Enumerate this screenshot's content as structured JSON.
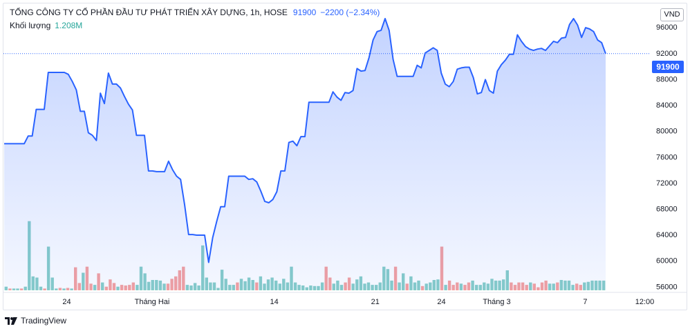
{
  "legend": {
    "title": "TỔNG CÔNG TY CỔ PHẦN ĐẦU TƯ PHÁT TRIỂN XÂY DỰNG, 1h, HOSE",
    "price": "91900",
    "change": "−2200 (−2.34%)",
    "volume_label": "Khối lượng",
    "volume_value": "1.208M"
  },
  "currency": "VND",
  "last_price_label": "91900",
  "brand": "TradingView",
  "colors": {
    "line": "#2962ff",
    "area_fill": "#2962ff",
    "volume_up": "#26a69a",
    "volume_down": "#ef5350"
  },
  "chart_data": {
    "type": "area",
    "y_ticks": [
      "96000",
      "92000",
      "88000",
      "84000",
      "80000",
      "76000",
      "72000",
      "68000",
      "64000",
      "60000",
      "56000"
    ],
    "x_ticks": [
      "24",
      "Tháng Hai",
      "14",
      "21",
      "24",
      "Tháng 3",
      "7",
      "12:00"
    ],
    "ylim": [
      55500,
      99000
    ],
    "last_value": 91900,
    "series": [
      {
        "values": [
          78000,
          78000,
          78000,
          78000,
          78000,
          78000,
          79200,
          79200,
          83300,
          83300,
          83300,
          89000,
          89000,
          89000,
          89000,
          89000,
          88700,
          87600,
          86300,
          83000,
          83000,
          79700,
          79300,
          78500,
          85800,
          84200,
          88900,
          87200,
          87200,
          86600,
          85300,
          84100,
          83200,
          79300,
          79300,
          79300,
          73800,
          73800,
          73700,
          73700,
          73700,
          75300,
          74000,
          73000,
          72500,
          68600,
          64000,
          64000,
          63900,
          63900,
          63900,
          59700,
          63500,
          66000,
          68300,
          68300,
          73000,
          73000,
          73000,
          73000,
          73000,
          72500,
          72600,
          72100,
          70700,
          69100,
          68900,
          69400,
          70600,
          73800,
          73800,
          78200,
          78400,
          77700,
          79100,
          79100,
          84400,
          84400,
          84400,
          84400,
          84400,
          84400,
          86000,
          85200,
          84700,
          85900,
          85800,
          86200,
          89600,
          89200,
          89300,
          91300,
          94000,
          95300,
          95500,
          97300,
          95500,
          91000,
          88400,
          88400,
          88400,
          88400,
          88400,
          90100,
          89700,
          92000,
          92400,
          92800,
          92400,
          88900,
          87200,
          86800,
          87600,
          89500,
          89700,
          89800,
          89800,
          88200,
          85700,
          85900,
          87900,
          86200,
          85800,
          89200,
          90200,
          90900,
          91800,
          91800,
          94800,
          93800,
          93000,
          92600,
          92400,
          92600,
          92700,
          92400,
          93100,
          93800,
          93600,
          94300,
          94400,
          96400,
          97300,
          96300,
          94400,
          95900,
          95700,
          95300,
          94000,
          93600,
          91900
        ]
      }
    ],
    "volume": [
      {
        "v": 0.6,
        "up": true
      },
      {
        "v": 0.3,
        "up": false
      },
      {
        "v": 0.3,
        "up": true
      },
      {
        "v": 0.3,
        "up": true
      },
      {
        "v": 0.3,
        "up": false
      },
      {
        "v": 0.6,
        "up": true
      },
      {
        "v": 11.4,
        "up": true
      },
      {
        "v": 2.3,
        "up": true
      },
      {
        "v": 2.1,
        "up": true
      },
      {
        "v": 0.6,
        "up": true
      },
      {
        "v": 0.3,
        "up": false
      },
      {
        "v": 7.2,
        "up": true
      },
      {
        "v": 2.1,
        "up": true
      },
      {
        "v": 0.3,
        "up": true
      },
      {
        "v": 0.4,
        "up": false
      },
      {
        "v": 0.3,
        "up": true
      },
      {
        "v": 0.4,
        "up": false
      },
      {
        "v": 0.3,
        "up": true
      },
      {
        "v": 3.8,
        "up": false
      },
      {
        "v": 1.2,
        "up": false
      },
      {
        "v": 2.9,
        "up": true
      },
      {
        "v": 3.9,
        "up": false
      },
      {
        "v": 1.1,
        "up": false
      },
      {
        "v": 0.9,
        "up": true
      },
      {
        "v": 2.8,
        "up": false
      },
      {
        "v": 1.3,
        "up": true
      },
      {
        "v": 0.6,
        "up": false
      },
      {
        "v": 1.8,
        "up": false
      },
      {
        "v": 1.2,
        "up": false
      },
      {
        "v": 0.6,
        "up": true
      },
      {
        "v": 0.9,
        "up": false
      },
      {
        "v": 0.8,
        "up": false
      },
      {
        "v": 0.9,
        "up": false
      },
      {
        "v": 1.3,
        "up": false
      },
      {
        "v": 0.9,
        "up": true
      },
      {
        "v": 3.9,
        "up": true
      },
      {
        "v": 2.8,
        "up": true
      },
      {
        "v": 1.4,
        "up": true
      },
      {
        "v": 1.7,
        "up": true
      },
      {
        "v": 1.7,
        "up": true
      },
      {
        "v": 1.6,
        "up": true
      },
      {
        "v": 1.1,
        "up": true
      },
      {
        "v": 1.1,
        "up": false
      },
      {
        "v": 1.9,
        "up": false
      },
      {
        "v": 2.3,
        "up": false
      },
      {
        "v": 3.3,
        "up": false
      },
      {
        "v": 3.9,
        "up": false
      },
      {
        "v": 0.9,
        "up": true
      },
      {
        "v": 0.8,
        "up": true
      },
      {
        "v": 1.2,
        "up": true
      },
      {
        "v": 0.8,
        "up": true
      },
      {
        "v": 7.4,
        "up": true
      },
      {
        "v": 2.1,
        "up": true
      },
      {
        "v": 1.3,
        "up": true
      },
      {
        "v": 1.3,
        "up": true
      },
      {
        "v": 0.4,
        "up": true
      },
      {
        "v": 3.4,
        "up": true
      },
      {
        "v": 1.9,
        "up": true
      },
      {
        "v": 0.9,
        "up": true
      },
      {
        "v": 0.9,
        "up": true
      },
      {
        "v": 1.3,
        "up": false
      },
      {
        "v": 1.9,
        "up": true
      },
      {
        "v": 1.5,
        "up": true
      },
      {
        "v": 2.1,
        "up": true
      },
      {
        "v": 1.7,
        "up": true
      },
      {
        "v": 1.3,
        "up": false
      },
      {
        "v": 2.3,
        "up": true
      },
      {
        "v": 1.1,
        "up": true
      },
      {
        "v": 1.8,
        "up": true
      },
      {
        "v": 2.1,
        "up": true
      },
      {
        "v": 1.6,
        "up": true
      },
      {
        "v": 1.1,
        "up": true
      },
      {
        "v": 1.9,
        "up": true
      },
      {
        "v": 1.3,
        "up": true
      },
      {
        "v": 3.9,
        "up": true
      },
      {
        "v": 1.3,
        "up": true
      },
      {
        "v": 0.9,
        "up": true
      },
      {
        "v": 0.8,
        "up": true
      },
      {
        "v": 0.5,
        "up": true
      },
      {
        "v": 0.8,
        "up": true
      },
      {
        "v": 0.7,
        "up": true
      },
      {
        "v": 0.7,
        "up": true
      },
      {
        "v": 1.3,
        "up": true
      },
      {
        "v": 3.9,
        "up": false
      },
      {
        "v": 2.1,
        "up": false
      },
      {
        "v": 1.1,
        "up": true
      },
      {
        "v": 1.6,
        "up": true
      },
      {
        "v": 0.9,
        "up": true
      },
      {
        "v": 1.3,
        "up": false
      },
      {
        "v": 2.1,
        "up": false
      },
      {
        "v": 1.1,
        "up": true
      },
      {
        "v": 1.8,
        "up": true
      },
      {
        "v": 2.3,
        "up": true
      },
      {
        "v": 1.1,
        "up": true
      },
      {
        "v": 1.3,
        "up": true
      },
      {
        "v": 0.9,
        "up": true
      },
      {
        "v": 0.9,
        "up": true
      },
      {
        "v": 1.3,
        "up": true
      },
      {
        "v": 3.9,
        "up": true
      },
      {
        "v": 3.5,
        "up": true
      },
      {
        "v": 1.6,
        "up": true
      },
      {
        "v": 3.9,
        "up": false
      },
      {
        "v": 1.3,
        "up": true
      },
      {
        "v": 2.8,
        "up": true
      },
      {
        "v": 1.1,
        "up": false
      },
      {
        "v": 2.3,
        "up": true
      },
      {
        "v": 1.3,
        "up": true
      },
      {
        "v": 1.6,
        "up": true
      },
      {
        "v": 0.7,
        "up": false
      },
      {
        "v": 1.1,
        "up": true
      },
      {
        "v": 1.3,
        "up": true
      },
      {
        "v": 1.7,
        "up": true
      },
      {
        "v": 1.8,
        "up": true
      },
      {
        "v": 7.2,
        "up": false
      },
      {
        "v": 0.9,
        "up": true
      },
      {
        "v": 1.6,
        "up": false
      },
      {
        "v": 0.9,
        "up": false
      },
      {
        "v": 1.3,
        "up": false
      },
      {
        "v": 1.1,
        "up": true
      },
      {
        "v": 0.9,
        "up": false
      },
      {
        "v": 1.3,
        "up": false
      },
      {
        "v": 1.6,
        "up": true
      },
      {
        "v": 0.9,
        "up": true
      },
      {
        "v": 0.9,
        "up": true
      },
      {
        "v": 1.3,
        "up": true
      },
      {
        "v": 1.1,
        "up": true
      },
      {
        "v": 1.9,
        "up": true
      },
      {
        "v": 1.6,
        "up": true
      },
      {
        "v": 1.6,
        "up": true
      },
      {
        "v": 1.8,
        "up": true
      },
      {
        "v": 3.3,
        "up": true
      },
      {
        "v": 1.3,
        "up": false
      },
      {
        "v": 0.9,
        "up": false
      },
      {
        "v": 1.3,
        "up": false
      },
      {
        "v": 1.3,
        "up": false
      },
      {
        "v": 0.9,
        "up": false
      },
      {
        "v": 1.3,
        "up": true
      },
      {
        "v": 1.1,
        "up": false
      },
      {
        "v": 0.5,
        "up": false
      },
      {
        "v": 1.3,
        "up": false
      },
      {
        "v": 1.6,
        "up": false
      },
      {
        "v": 1.1,
        "up": true
      },
      {
        "v": 1.1,
        "up": true
      },
      {
        "v": 1.3,
        "up": false
      },
      {
        "v": 1.7,
        "up": true
      },
      {
        "v": 1.6,
        "up": true
      },
      {
        "v": 1.6,
        "up": true
      },
      {
        "v": 0.9,
        "up": true
      },
      {
        "v": 1.1,
        "up": false
      },
      {
        "v": 0.9,
        "up": false
      },
      {
        "v": 1.3,
        "up": true
      },
      {
        "v": 1.4,
        "up": true
      },
      {
        "v": 1.6,
        "up": true
      },
      {
        "v": 1.6,
        "up": true
      },
      {
        "v": 1.6,
        "up": true
      },
      {
        "v": 1.6,
        "up": true
      }
    ]
  }
}
